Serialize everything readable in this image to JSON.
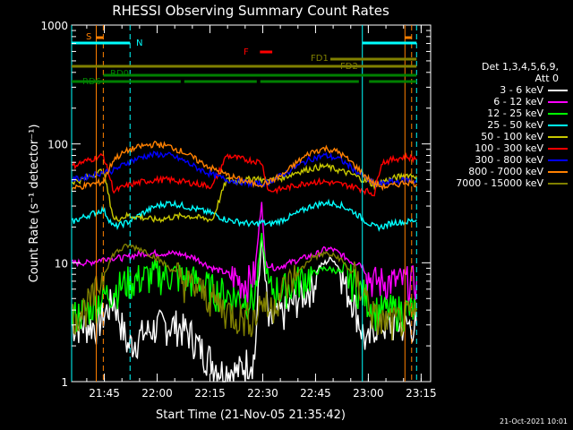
{
  "chart_data": {
    "type": "line",
    "title": "RHESSI Observing Summary Count Rates",
    "xlabel": "Start Time (21-Nov-05 21:35:42)",
    "ylabel": "Count Rate (s⁻¹ detector⁻¹)",
    "yscale": "log",
    "ylim": [
      1,
      1000
    ],
    "xlim_minutes": [
      0,
      102
    ],
    "x_ticks": [
      {
        "t": 9.3,
        "label": "21:45"
      },
      {
        "t": 24.3,
        "label": "22:00"
      },
      {
        "t": 39.3,
        "label": "22:15"
      },
      {
        "t": 54.3,
        "label": "22:30"
      },
      {
        "t": 69.3,
        "label": "22:45"
      },
      {
        "t": 84.3,
        "label": "23:00"
      },
      {
        "t": 99.3,
        "label": "23:15"
      }
    ],
    "y_ticks": [
      {
        "v": 1,
        "label": "1"
      },
      {
        "v": 10,
        "label": "10"
      },
      {
        "v": 100,
        "label": "100"
      },
      {
        "v": 1000,
        "label": "1000"
      }
    ],
    "legend_header": [
      "Det 1,3,4,5,6,9,",
      "Att 0"
    ],
    "x_units": "minutes from 21:35:42",
    "series": [
      {
        "name": "3 - 6 keV",
        "color": "#ffffff",
        "x": [
          0,
          4,
          7,
          10,
          12,
          16,
          20,
          25,
          30,
          34,
          36,
          40,
          43,
          45,
          47,
          50,
          52,
          54,
          56,
          58,
          61,
          64,
          67,
          69,
          70,
          72,
          74,
          76,
          78,
          80,
          82,
          84,
          86,
          88,
          90,
          92,
          94,
          96,
          98
        ],
        "y": [
          3,
          3,
          3,
          4,
          5,
          2,
          2.5,
          3,
          3,
          2.5,
          2,
          1.5,
          1.2,
          1.3,
          1.2,
          1.5,
          1.6,
          17,
          3,
          3.5,
          4,
          5,
          6,
          7,
          9,
          10,
          11,
          9,
          6,
          5,
          3,
          2,
          3,
          3,
          3,
          3,
          3,
          3,
          3
        ]
      },
      {
        "name": "6 - 12 keV",
        "color": "#ff00ff",
        "x": [
          0,
          5,
          10,
          15,
          20,
          25,
          30,
          35,
          40,
          45,
          48,
          50,
          52,
          54,
          55,
          58,
          62,
          66,
          70,
          72,
          74,
          76,
          78,
          80,
          82,
          84,
          86,
          90,
          95,
          98
        ],
        "y": [
          10,
          10,
          11,
          11,
          12,
          12,
          12,
          11,
          9,
          8,
          7,
          7,
          8,
          34,
          10,
          9,
          10,
          11,
          12,
          13,
          13,
          12,
          11,
          10,
          10,
          8,
          7,
          7,
          7,
          7
        ]
      },
      {
        "name": "12 - 25 keV",
        "color": "#00ff00",
        "x": [
          0,
          4,
          8,
          12,
          16,
          20,
          24,
          28,
          32,
          36,
          40,
          44,
          48,
          52,
          54,
          56,
          60,
          64,
          68,
          72,
          76,
          80,
          84,
          86,
          90,
          95,
          98
        ],
        "y": [
          3.5,
          4,
          5,
          6,
          7,
          7.5,
          8,
          8,
          7.5,
          7,
          6,
          5.5,
          5,
          5,
          17,
          6,
          6,
          7,
          8,
          9,
          8.5,
          7,
          5,
          4,
          4,
          4,
          4
        ]
      },
      {
        "name": "25 - 50 keV",
        "color": "#00ffff",
        "x": [
          0,
          3,
          6,
          9,
          12,
          16,
          20,
          24,
          28,
          32,
          36,
          40,
          44,
          48,
          52,
          54,
          56,
          60,
          64,
          68,
          72,
          76,
          80,
          84,
          86,
          88,
          90,
          92,
          95,
          98
        ],
        "y": [
          22,
          24,
          26,
          28,
          20,
          22,
          26,
          30,
          32,
          30,
          28,
          26,
          23,
          22,
          21,
          22,
          21,
          23,
          26,
          30,
          32,
          31,
          27,
          22,
          20,
          20,
          21,
          22,
          22,
          23
        ]
      },
      {
        "name": "50 - 100 keV",
        "color": "#c8c800",
        "x": [
          0,
          3,
          6,
          9,
          12,
          16,
          20,
          24,
          28,
          32,
          36,
          40,
          44,
          48,
          52,
          54,
          56,
          60,
          64,
          68,
          72,
          76,
          80,
          84,
          86,
          88,
          90,
          92,
          95,
          98
        ],
        "y": [
          48,
          50,
          55,
          60,
          23,
          25,
          24,
          23,
          24,
          25,
          24,
          23,
          50,
          48,
          52,
          50,
          49,
          52,
          58,
          62,
          65,
          60,
          55,
          48,
          45,
          48,
          50,
          52,
          55,
          54
        ]
      },
      {
        "name": "100 - 300 keV",
        "color": "#ff0000",
        "x": [
          0,
          3,
          6,
          9,
          12,
          16,
          20,
          24,
          28,
          32,
          36,
          40,
          44,
          48,
          52,
          54,
          56,
          60,
          64,
          68,
          72,
          76,
          80,
          84,
          86,
          88,
          90,
          92,
          95,
          98
        ],
        "y": [
          65,
          70,
          75,
          80,
          40,
          45,
          48,
          50,
          50,
          48,
          46,
          44,
          80,
          75,
          72,
          70,
          40,
          42,
          45,
          48,
          48,
          46,
          44,
          40,
          38,
          70,
          72,
          75,
          78,
          75
        ]
      },
      {
        "name": "300 - 800 keV",
        "color": "#0000ff",
        "x": [
          0,
          3,
          6,
          9,
          12,
          16,
          20,
          24,
          28,
          32,
          36,
          40,
          44,
          48,
          52,
          54,
          56,
          60,
          64,
          68,
          72,
          76,
          80,
          84,
          86,
          88,
          90,
          92,
          95,
          98
        ],
        "y": [
          50,
          52,
          55,
          58,
          60,
          70,
          78,
          82,
          80,
          72,
          62,
          55,
          50,
          48,
          46,
          46,
          48,
          55,
          65,
          75,
          80,
          75,
          62,
          50,
          46,
          46,
          48,
          48,
          50,
          48
        ]
      },
      {
        "name": "800 - 7000 keV",
        "color": "#ff8000",
        "x": [
          0,
          3,
          6,
          9,
          12,
          16,
          20,
          24,
          28,
          32,
          36,
          40,
          44,
          48,
          52,
          54,
          56,
          60,
          64,
          68,
          72,
          76,
          80,
          84,
          86,
          88,
          90,
          92,
          95,
          98
        ],
        "y": [
          42,
          44,
          46,
          48,
          75,
          88,
          96,
          100,
          95,
          85,
          72,
          62,
          55,
          50,
          46,
          46,
          48,
          55,
          70,
          85,
          92,
          85,
          68,
          52,
          46,
          44,
          44,
          45,
          48,
          46
        ]
      },
      {
        "name": "7000 - 15000 keV",
        "color": "#808000",
        "x": [
          0,
          3,
          6,
          9,
          12,
          16,
          20,
          24,
          28,
          32,
          36,
          40,
          44,
          48,
          52,
          54,
          56,
          60,
          64,
          68,
          72,
          76,
          80,
          84,
          86,
          88,
          90,
          92,
          95,
          98
        ],
        "y": [
          3.5,
          4,
          5,
          8,
          12,
          14,
          13,
          11,
          9,
          7,
          6,
          5,
          4,
          3.5,
          3.5,
          5,
          4,
          6,
          8,
          11,
          12,
          11,
          8,
          5,
          3.5,
          3.2,
          3.2,
          3.2,
          3.5,
          3.5
        ]
      }
    ],
    "vertical_markers": [
      {
        "t": 0,
        "color": "#00ffff",
        "style": "solid"
      },
      {
        "t": 7.0,
        "color": "#ff8000",
        "style": "solid"
      },
      {
        "t": 9.0,
        "color": "#ff8000",
        "style": "dashed"
      },
      {
        "t": 16.6,
        "color": "#00ffff",
        "style": "dashed"
      },
      {
        "t": 82.6,
        "color": "#00ffff",
        "style": "solid"
      },
      {
        "t": 94.7,
        "color": "#ff8000",
        "style": "solid"
      },
      {
        "t": 96.6,
        "color": "#ff8000",
        "style": "dashed"
      },
      {
        "t": 98.0,
        "color": "#00ffff",
        "style": "dashed"
      }
    ],
    "flag_bars": [
      {
        "label": "S",
        "color": "#ff8000",
        "segments": [
          [
            7.0,
            9.0
          ],
          [
            94.7,
            96.6
          ]
        ]
      },
      {
        "label": "N",
        "color": "#00ffff",
        "segments": [
          [
            0,
            16.6
          ],
          [
            82.6,
            98.0
          ]
        ]
      },
      {
        "label": "F",
        "color": "#ff0000",
        "segments": [
          [
            53.5,
            57.0
          ]
        ]
      },
      {
        "label": "FD1",
        "color": "#808000",
        "segments": [
          [
            73.5,
            98.0
          ]
        ]
      },
      {
        "label": "FD2",
        "color": "#808000",
        "segments": [
          [
            0,
            98.0
          ]
        ]
      },
      {
        "label": "RD0",
        "color": "#008000",
        "segments": [
          [
            9.0,
            98.0
          ]
        ]
      },
      {
        "label": "RD6",
        "color": "#008000",
        "segments": [
          [
            0,
            16.6
          ],
          [
            16.6,
            31.0
          ],
          [
            32.0,
            52.6
          ],
          [
            53.6,
            81.6
          ],
          [
            84.5,
            98.0
          ]
        ]
      }
    ]
  },
  "footer": {
    "timestamp": "21-Oct-2021 10:01"
  }
}
